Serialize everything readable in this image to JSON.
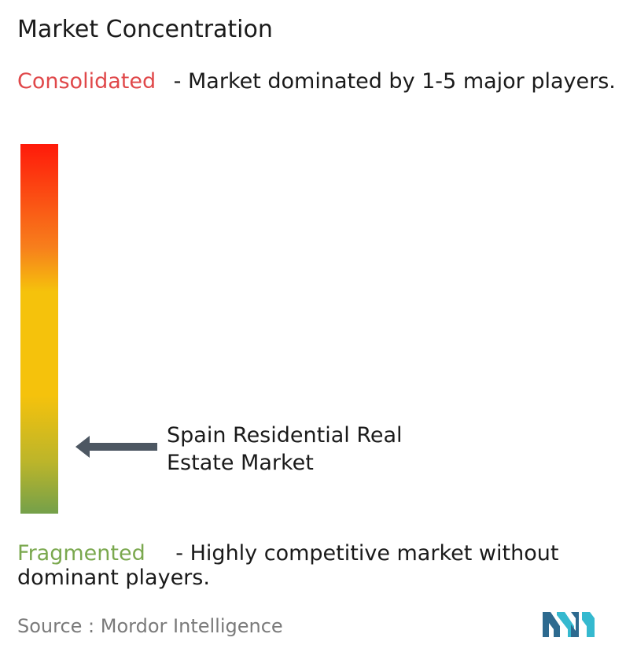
{
  "chart_data": {
    "type": "gradient-scale",
    "title": "Market Concentration",
    "top": {
      "label": "Consolidated",
      "description": " - Market dominated by 1-5 major players."
    },
    "bottom": {
      "label": "Fragmented",
      "description": " - Highly competitive market without dominant players."
    },
    "marker": {
      "label_line1": "Spain Residential Real",
      "label_line2": "Estate Market",
      "position_fraction": 0.18
    },
    "gradient_colors": [
      "#ff1a0a",
      "#f77f1c",
      "#f5c20c",
      "#bcb52a",
      "#74a04a"
    ]
  },
  "source": {
    "prefix": "Source : ",
    "name": "Mordor Intelligence"
  },
  "logo": {
    "icon": "mordor-intelligence-logo-icon",
    "colors": [
      "#2d6a8f",
      "#35b9cf"
    ]
  }
}
